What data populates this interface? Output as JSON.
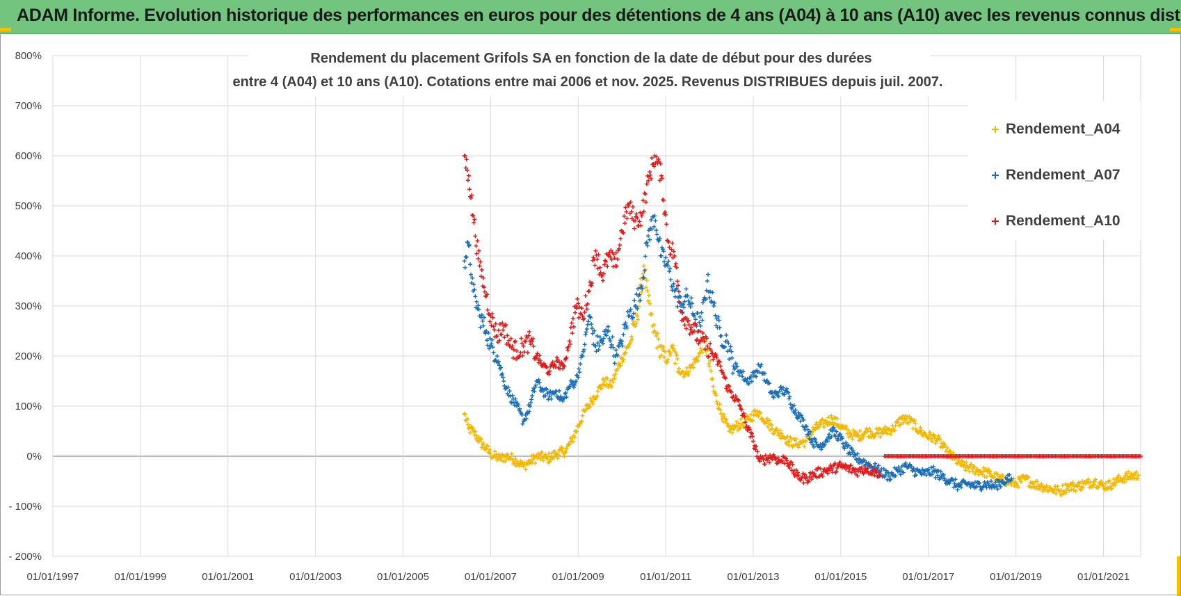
{
  "banner": {
    "title": "ADAM Informe. Evolution historique des performances en euros pour des détentions de 4 ans (A04) à 10 ans (A10) avec les revenus connus distribués"
  },
  "chart_data": {
    "type": "scatter",
    "title_lines": [
      "Rendement du placement Grifols SA en fonction de la date de début pour des durées",
      "entre 4 (A04) et 10 ans (A10). Cotations entre mai 2006 et nov. 2025. Revenus DISTRIBUES depuis juil. 2007."
    ],
    "xlabel": "",
    "ylabel": "",
    "xlim": [
      1997.0,
      2021.85
    ],
    "ylim": [
      -200,
      800
    ],
    "grid": true,
    "legend": "top-right",
    "y_ticks": [
      {
        "value": 800,
        "label": "800%"
      },
      {
        "value": 700,
        "label": "700%"
      },
      {
        "value": 600,
        "label": "600%"
      },
      {
        "value": 500,
        "label": "500%"
      },
      {
        "value": 400,
        "label": "400%"
      },
      {
        "value": 300,
        "label": "300%"
      },
      {
        "value": 200,
        "label": "200%"
      },
      {
        "value": 100,
        "label": "100%"
      },
      {
        "value": 0,
        "label": "0%"
      },
      {
        "value": -100,
        "label": "- 100%"
      },
      {
        "value": -200,
        "label": "- 200%"
      }
    ],
    "x_ticks": [
      {
        "value": 1997,
        "label": "01/01/1997"
      },
      {
        "value": 1999,
        "label": "01/01/1999"
      },
      {
        "value": 2001,
        "label": "01/01/2001"
      },
      {
        "value": 2003,
        "label": "01/01/2003"
      },
      {
        "value": 2005,
        "label": "01/01/2005"
      },
      {
        "value": 2007,
        "label": "01/01/2007"
      },
      {
        "value": 2009,
        "label": "01/01/2009"
      },
      {
        "value": 2011,
        "label": "01/01/2011"
      },
      {
        "value": 2013,
        "label": "01/01/2013"
      },
      {
        "value": 2015,
        "label": "01/01/2015"
      },
      {
        "value": 2017,
        "label": "01/01/2017"
      },
      {
        "value": 2019,
        "label": "01/01/2019"
      },
      {
        "value": 2021,
        "label": "01/01/2021"
      }
    ],
    "series": [
      {
        "name": "Rendement_A04",
        "color": "#f5b800",
        "x": [
          2006.4,
          2006.5,
          2006.6,
          2006.75,
          2006.9,
          2007.0,
          2007.2,
          2007.4,
          2007.6,
          2007.75,
          2007.9,
          2008.1,
          2008.3,
          2008.5,
          2008.7,
          2008.85,
          2009.0,
          2009.15,
          2009.3,
          2009.45,
          2009.6,
          2009.75,
          2009.9,
          2010.0,
          2010.2,
          2010.35,
          2010.5,
          2010.6,
          2010.7,
          2010.85,
          2011.0,
          2011.15,
          2011.3,
          2011.45,
          2011.6,
          2011.75,
          2011.9,
          2012.1,
          2012.3,
          2012.45,
          2012.6,
          2012.75,
          2012.9,
          2013.1,
          2013.3,
          2013.5,
          2013.65,
          2013.8,
          2014.0,
          2014.2,
          2014.4,
          2014.6,
          2014.8,
          2015.0,
          2015.2,
          2015.4,
          2015.6,
          2015.8,
          2016.0,
          2016.2,
          2016.4,
          2016.6,
          2016.8,
          2017.0,
          2017.2,
          2017.4,
          2017.6,
          2017.8,
          2018.0,
          2018.2,
          2018.4,
          2018.6,
          2018.8,
          2019.0,
          2019.2,
          2019.4,
          2019.6,
          2019.8,
          2020.0,
          2020.2,
          2020.4,
          2020.6,
          2020.8,
          2021.0,
          2021.2,
          2021.4,
          2021.6,
          2021.8
        ],
        "values": [
          85,
          55,
          50,
          30,
          15,
          5,
          -5,
          0,
          -10,
          -20,
          -10,
          0,
          -5,
          5,
          10,
          30,
          60,
          90,
          110,
          130,
          150,
          140,
          175,
          195,
          230,
          280,
          380,
          310,
          260,
          220,
          190,
          215,
          175,
          165,
          180,
          200,
          230,
          130,
          80,
          50,
          60,
          65,
          75,
          90,
          70,
          50,
          45,
          30,
          25,
          30,
          55,
          65,
          75,
          60,
          45,
          40,
          50,
          45,
          50,
          55,
          75,
          70,
          50,
          40,
          35,
          10,
          -5,
          -20,
          -25,
          -30,
          -35,
          -45,
          -50,
          -55,
          -45,
          -55,
          -60,
          -65,
          -70,
          -60,
          -60,
          -55,
          -50,
          -60,
          -55,
          -45,
          -40,
          -38
        ]
      },
      {
        "name": "Rendement_A07",
        "color": "#1a6fb8",
        "x": [
          2006.4,
          2006.5,
          2006.6,
          2006.75,
          2006.9,
          2007.0,
          2007.15,
          2007.3,
          2007.45,
          2007.6,
          2007.75,
          2007.9,
          2008.05,
          2008.2,
          2008.35,
          2008.5,
          2008.65,
          2008.8,
          2008.95,
          2009.1,
          2009.25,
          2009.4,
          2009.55,
          2009.7,
          2009.85,
          2010.0,
          2010.15,
          2010.3,
          2010.45,
          2010.6,
          2010.75,
          2010.9,
          2011.05,
          2011.2,
          2011.35,
          2011.5,
          2011.65,
          2011.8,
          2011.95,
          2012.1,
          2012.25,
          2012.4,
          2012.55,
          2012.7,
          2012.85,
          2013.0,
          2013.15,
          2013.3,
          2013.45,
          2013.6,
          2013.75,
          2013.9,
          2014.05,
          2014.2,
          2014.35,
          2014.5,
          2014.65,
          2014.8,
          2014.95,
          2015.1,
          2015.3,
          2015.5,
          2015.7,
          2015.9,
          2016.1,
          2016.3,
          2016.5,
          2016.7,
          2016.9,
          2017.1,
          2017.3,
          2017.5,
          2017.7,
          2017.9,
          2018.1,
          2018.3,
          2018.5,
          2018.7,
          2018.9
        ],
        "values": [
          390,
          420,
          330,
          280,
          250,
          220,
          200,
          150,
          120,
          100,
          70,
          100,
          150,
          130,
          120,
          130,
          110,
          140,
          150,
          200,
          280,
          220,
          230,
          250,
          200,
          230,
          280,
          300,
          340,
          440,
          480,
          400,
          380,
          330,
          300,
          320,
          280,
          260,
          350,
          300,
          240,
          230,
          180,
          170,
          150,
          160,
          180,
          150,
          120,
          130,
          130,
          100,
          80,
          60,
          30,
          20,
          30,
          50,
          40,
          20,
          0,
          -10,
          -20,
          -30,
          -40,
          -30,
          -20,
          -30,
          -35,
          -30,
          -40,
          -50,
          -60,
          -55,
          -60,
          -55,
          -60,
          -50,
          -45
        ]
      },
      {
        "name": "Rendement_A10",
        "color": "#e31b1b",
        "x": [
          2006.4,
          2006.5,
          2006.6,
          2006.75,
          2006.9,
          2007.0,
          2007.15,
          2007.3,
          2007.45,
          2007.6,
          2007.75,
          2007.9,
          2008.05,
          2008.2,
          2008.35,
          2008.5,
          2008.65,
          2008.8,
          2008.95,
          2009.1,
          2009.25,
          2009.4,
          2009.55,
          2009.7,
          2009.85,
          2010.0,
          2010.15,
          2010.3,
          2010.45,
          2010.6,
          2010.75,
          2010.9,
          2011.05,
          2011.2,
          2011.35,
          2011.5,
          2011.65,
          2011.8,
          2011.95,
          2012.1,
          2012.25,
          2012.4,
          2012.55,
          2012.7,
          2012.85,
          2013.0,
          2013.15,
          2013.3,
          2013.45,
          2013.6,
          2013.75,
          2014.0,
          2014.2,
          2014.4,
          2014.6,
          2014.8,
          2015.0,
          2015.2,
          2015.4,
          2015.6,
          2015.75,
          2015.9
        ],
        "values": [
          600,
          560,
          480,
          380,
          320,
          280,
          240,
          260,
          220,
          210,
          220,
          230,
          200,
          180,
          170,
          190,
          175,
          230,
          300,
          280,
          330,
          410,
          360,
          400,
          380,
          450,
          500,
          470,
          480,
          550,
          600,
          560,
          430,
          400,
          290,
          270,
          250,
          230,
          220,
          200,
          180,
          140,
          120,
          100,
          60,
          30,
          -10,
          -5,
          0,
          -10,
          -5,
          -40,
          -45,
          -35,
          -30,
          -25,
          -20,
          -25,
          -30,
          -25,
          -30,
          -35
        ]
      }
    ],
    "flat_segment": {
      "series": "Rendement_A10",
      "x_start": 2016.0,
      "x_end": 2021.85,
      "value": 0
    }
  }
}
